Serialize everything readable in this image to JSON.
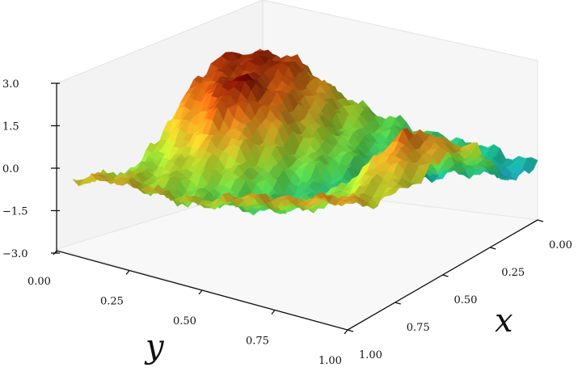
{
  "chart_data": {
    "type": "surface",
    "title": "",
    "xlabel": "x",
    "ylabel": "y",
    "zlabel": "",
    "xlim": [
      0,
      1
    ],
    "ylim": [
      0,
      1
    ],
    "zlim": [
      -3,
      3
    ],
    "x_ticks": [
      "0.00",
      "0.25",
      "0.50",
      "0.75",
      "1.00"
    ],
    "y_ticks": [
      "0.00",
      "0.25",
      "0.50",
      "0.75",
      "1.00"
    ],
    "z_ticks": [
      "−3.0",
      "−1.5",
      "0.0",
      "1.5",
      "3.0"
    ],
    "colormap": "turbo",
    "grid": false,
    "z_samples": [
      [
        1.3,
        0.9,
        0.6,
        0.3,
        0.0,
        -0.3,
        -0.5,
        -0.6,
        -0.8,
        -1.0
      ],
      [
        2.0,
        2.3,
        2.0,
        1.2,
        0.4,
        -0.2,
        -0.6,
        -0.5,
        -0.9,
        -1.2
      ],
      [
        2.4,
        2.6,
        2.5,
        1.6,
        0.4,
        -0.2,
        -0.7,
        -0.9,
        -0.6,
        -0.3
      ],
      [
        2.2,
        2.4,
        2.3,
        1.9,
        0.6,
        0.0,
        -0.8,
        -0.2,
        0.4,
        0.9
      ],
      [
        1.5,
        2.2,
        2.9,
        2.0,
        0.5,
        0.0,
        -1.0,
        0.8,
        1.8,
        1.2
      ],
      [
        0.8,
        1.3,
        2.2,
        1.4,
        0.2,
        -0.5,
        -0.4,
        1.0,
        2.0,
        1.0
      ],
      [
        0.2,
        0.6,
        1.0,
        0.7,
        0.0,
        -0.4,
        -0.1,
        0.5,
        1.2,
        0.8
      ],
      [
        0.4,
        0.6,
        0.6,
        0.2,
        -0.2,
        -0.2,
        0.1,
        0.3,
        0.8,
        0.9
      ],
      [
        0.7,
        0.9,
        0.5,
        0.3,
        0.4,
        0.6,
        0.5,
        0.7,
        1.1,
        1.0
      ],
      [
        1.1,
        1.3,
        1.2,
        1.0,
        0.8,
        1.1,
        1.4,
        1.3,
        1.5,
        1.6
      ]
    ]
  }
}
